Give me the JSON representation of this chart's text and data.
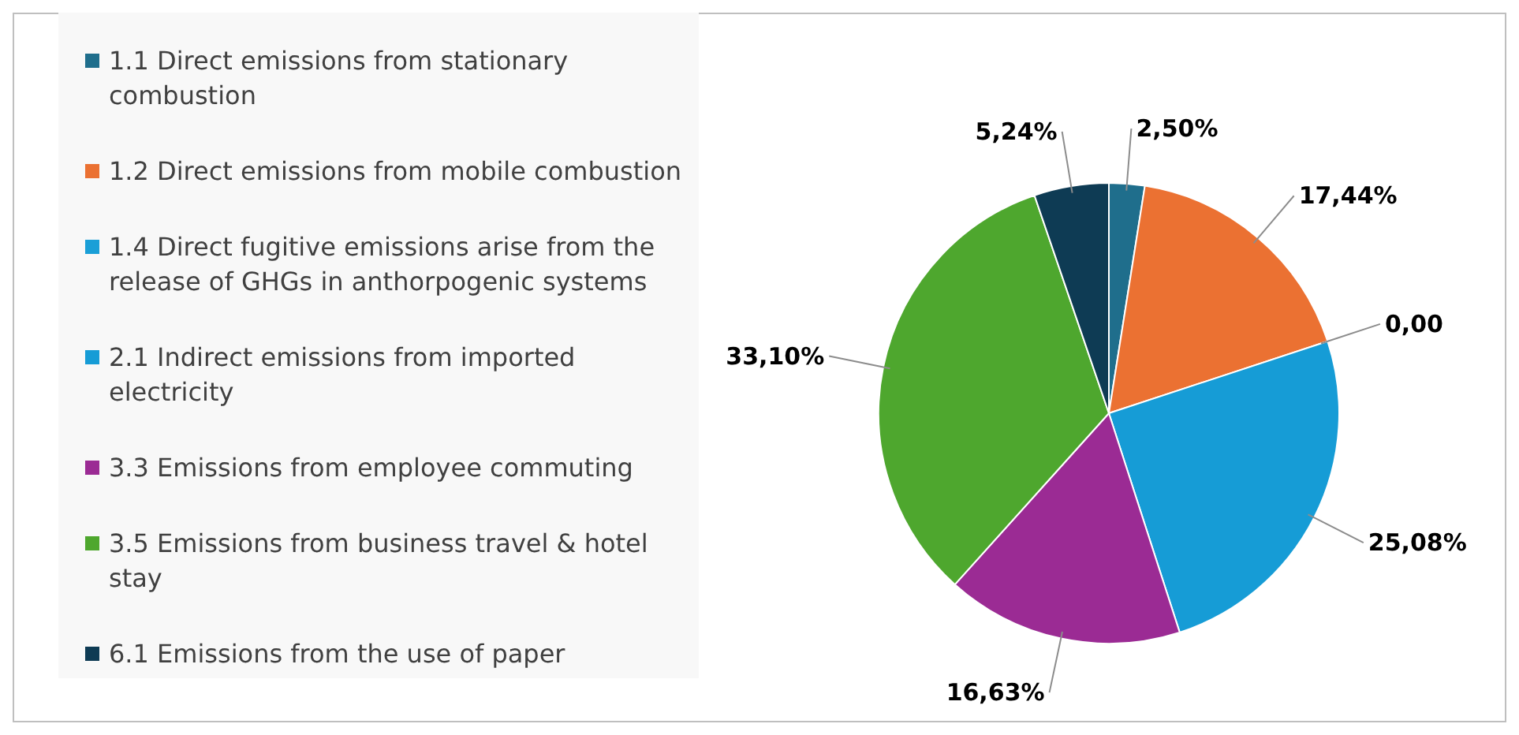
{
  "chart_data": {
    "type": "pie",
    "categories": [
      "1.1 Direct emissions from stationary combustion",
      "1.2 Direct emissions from mobile combustion",
      "1.4 Direct fugitive emissions arise from the release of GHGs in anthorpogenic systems",
      "2.1 Indirect emissions from imported electricity",
      "3.3 Emissions from employee commuting",
      "3.5 Emissions from business travel & hotel stay",
      "6.1 Emissions from the use of paper"
    ],
    "values": [
      2.5,
      17.44,
      0,
      25.08,
      16.63,
      33.1,
      5.24
    ],
    "value_labels": [
      "2,50%",
      "17,44%",
      "0,00",
      "25,08%",
      "16,63%",
      "33,10%",
      "5,24%"
    ],
    "colors": [
      "#1f6e8c",
      "#eb7132",
      "#1a9fd7",
      "#169cd6",
      "#9b2b94",
      "#4ea72e",
      "#0e3b54"
    ],
    "legend": "left"
  }
}
